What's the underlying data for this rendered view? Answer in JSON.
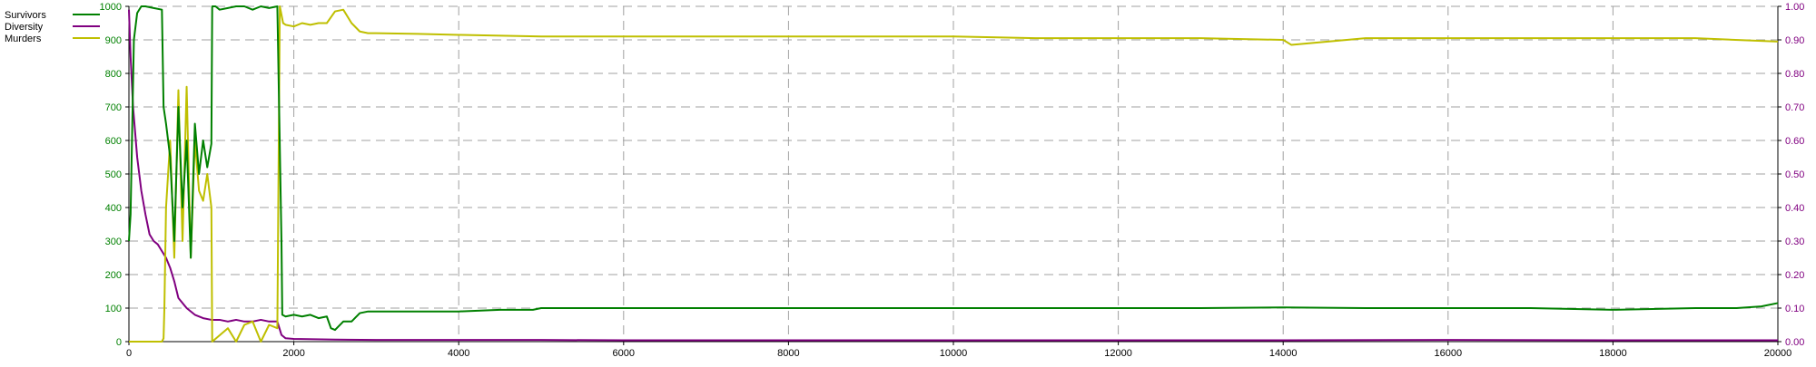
{
  "chart_data": {
    "type": "line",
    "title": "",
    "xlabel": "",
    "ylabel": "",
    "xlim": [
      0,
      20000
    ],
    "ylim_left": [
      0,
      1000
    ],
    "ylim_right": [
      0,
      1.0
    ],
    "grid": true,
    "legend_position": "top-left",
    "x_ticks": [
      0,
      2000,
      4000,
      6000,
      8000,
      10000,
      12000,
      14000,
      16000,
      18000,
      20000
    ],
    "x_tick_labels": [
      "0",
      "2000",
      "4000",
      "6000",
      "8000",
      "10000",
      "12000",
      "14000",
      "16000",
      "18000",
      "20000"
    ],
    "y_left_ticks": [
      0,
      100,
      200,
      300,
      400,
      500,
      600,
      700,
      800,
      900,
      1000
    ],
    "y_left_tick_labels": [
      "0",
      "100",
      "200",
      "300",
      "400",
      "500",
      "600",
      "700",
      "800",
      "900",
      "1000"
    ],
    "y_right_ticks": [
      0,
      0.1,
      0.2,
      0.3,
      0.4,
      0.5,
      0.6,
      0.7,
      0.8,
      0.9,
      1.0
    ],
    "y_right_tick_labels": [
      "0.00",
      "0.10",
      "0.20",
      "0.30",
      "0.40",
      "0.50",
      "0.60",
      "0.70",
      "0.80",
      "0.90",
      "1.00"
    ],
    "colors": {
      "survivors": "#008000",
      "diversity": "#800080",
      "murders": "#bfbf00",
      "grid": "#a0a0a0",
      "left_axis_labels": "#008000",
      "right_axis_labels": "#800080"
    },
    "series": [
      {
        "name": "Survivors",
        "axis": "left",
        "x": [
          0,
          20,
          60,
          100,
          150,
          200,
          300,
          400,
          420,
          450,
          500,
          550,
          600,
          650,
          700,
          750,
          800,
          850,
          900,
          950,
          1000,
          1010,
          1050,
          1100,
          1200,
          1300,
          1400,
          1500,
          1600,
          1700,
          1800,
          1850,
          1860,
          1900,
          2000,
          2100,
          2200,
          2300,
          2400,
          2450,
          2500,
          2600,
          2700,
          2800,
          2900,
          3000,
          3500,
          4000,
          4500,
          4900,
          5000,
          6000,
          7000,
          8000,
          9000,
          10000,
          11000,
          12000,
          13000,
          14000,
          15000,
          16000,
          17000,
          18000,
          19000,
          19500,
          19800,
          20000
        ],
        "values": [
          300,
          380,
          900,
          980,
          1000,
          1000,
          995,
          990,
          700,
          650,
          550,
          300,
          700,
          400,
          600,
          250,
          650,
          500,
          600,
          520,
          590,
          1000,
          1000,
          990,
          995,
          1000,
          1000,
          990,
          1000,
          995,
          1000,
          300,
          80,
          75,
          80,
          75,
          80,
          70,
          75,
          40,
          35,
          60,
          60,
          85,
          90,
          90,
          90,
          90,
          95,
          95,
          100,
          100,
          100,
          100,
          100,
          100,
          100,
          100,
          100,
          102,
          100,
          100,
          100,
          95,
          100,
          100,
          105,
          115
        ]
      },
      {
        "name": "Diversity",
        "axis": "right",
        "x": [
          0,
          20,
          50,
          100,
          150,
          200,
          250,
          300,
          350,
          400,
          450,
          500,
          550,
          600,
          700,
          800,
          900,
          1000,
          1100,
          1200,
          1300,
          1400,
          1500,
          1600,
          1700,
          1800,
          1850,
          1900,
          2000,
          2500,
          3000,
          4000,
          5000,
          6000,
          7000,
          8000,
          10000,
          12000,
          14000,
          16000,
          18000,
          20000
        ],
        "values": [
          0.99,
          0.85,
          0.7,
          0.55,
          0.45,
          0.38,
          0.32,
          0.3,
          0.29,
          0.27,
          0.25,
          0.22,
          0.18,
          0.13,
          0.1,
          0.08,
          0.07,
          0.065,
          0.065,
          0.06,
          0.065,
          0.06,
          0.06,
          0.065,
          0.06,
          0.06,
          0.02,
          0.01,
          0.008,
          0.006,
          0.005,
          0.005,
          0.005,
          0.004,
          0.004,
          0.004,
          0.004,
          0.004,
          0.004,
          0.005,
          0.004,
          0.004
        ]
      },
      {
        "name": "Murders",
        "axis": "left",
        "x": [
          0,
          400,
          420,
          430,
          450,
          500,
          550,
          600,
          650,
          700,
          750,
          800,
          850,
          900,
          950,
          1000,
          1010,
          1200,
          1300,
          1400,
          1500,
          1600,
          1700,
          1800,
          1830,
          1870,
          1900,
          2000,
          2100,
          2200,
          2300,
          2400,
          2500,
          2600,
          2700,
          2800,
          2900,
          3000,
          3500,
          4000,
          5000,
          6000,
          7000,
          8000,
          9000,
          10000,
          11000,
          12000,
          13000,
          14000,
          14100,
          15000,
          16000,
          17000,
          18000,
          19000,
          20000
        ],
        "values": [
          0,
          0,
          10,
          100,
          400,
          600,
          250,
          750,
          300,
          760,
          250,
          600,
          450,
          420,
          500,
          400,
          0,
          40,
          0,
          50,
          60,
          0,
          50,
          40,
          1000,
          950,
          945,
          940,
          950,
          945,
          950,
          950,
          985,
          990,
          950,
          925,
          920,
          920,
          918,
          915,
          910,
          910,
          910,
          910,
          910,
          910,
          905,
          905,
          905,
          900,
          885,
          905,
          905,
          905,
          905,
          905,
          895
        ]
      }
    ]
  }
}
